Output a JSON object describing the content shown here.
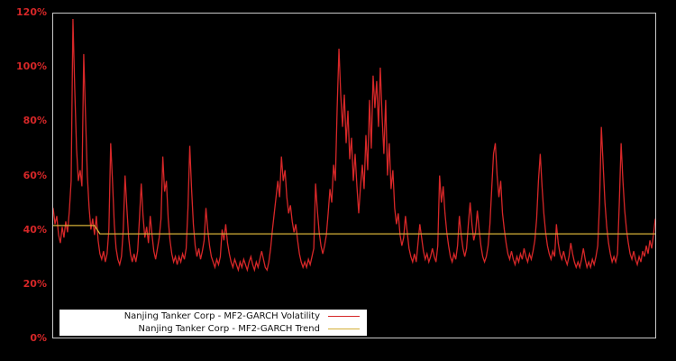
{
  "colors": {
    "background": "#000000",
    "volatility": "#d62728",
    "trend": "#d4af37",
    "axis_label": "#d62728",
    "plot_border": "#c8c8c8",
    "legend_bg": "#ffffff",
    "legend_text": "#111111"
  },
  "chart_data": {
    "type": "line",
    "title": "",
    "xlabel": "",
    "ylabel": "",
    "ylim": [
      0,
      120
    ],
    "x_axis_labels_visible": false,
    "grid": false,
    "legend_position": "lower-left",
    "y_ticks": [
      {
        "label": "0%",
        "value": 0
      },
      {
        "label": "20%",
        "value": 20
      },
      {
        "label": "40%",
        "value": 40
      },
      {
        "label": "60%",
        "value": 60
      },
      {
        "label": "80%",
        "value": 80
      },
      {
        "label": "100%",
        "value": 100
      },
      {
        "label": "120%",
        "value": 120
      }
    ],
    "series": [
      {
        "name": "Nanjing Tanker Corp - MF2-GARCH Volatility",
        "color_key": "volatility",
        "unit": "%",
        "values": [
          48,
          42,
          45,
          38,
          35,
          41,
          37,
          43,
          39,
          47,
          58,
          118,
          92,
          70,
          58,
          62,
          56,
          105,
          82,
          60,
          48,
          40,
          44,
          38,
          45,
          36,
          31,
          29,
          32,
          28,
          31,
          40,
          72,
          58,
          42,
          33,
          29,
          27,
          30,
          40,
          60,
          48,
          37,
          31,
          28,
          31,
          28,
          32,
          44,
          57,
          45,
          37,
          41,
          35,
          45,
          38,
          32,
          29,
          33,
          37,
          44,
          67,
          54,
          58,
          44,
          36,
          31,
          28,
          30,
          27,
          30,
          28,
          31,
          29,
          33,
          48,
          71,
          55,
          42,
          34,
          30,
          33,
          29,
          32,
          36,
          48,
          40,
          34,
          30,
          28,
          26,
          29,
          27,
          30,
          40,
          36,
          42,
          35,
          31,
          28,
          26,
          29,
          27,
          25,
          28,
          26,
          29,
          27,
          25,
          28,
          30,
          27,
          25,
          28,
          26,
          29,
          32,
          29,
          26,
          25,
          28,
          33,
          40,
          46,
          52,
          58,
          52,
          67,
          58,
          62,
          52,
          46,
          49,
          43,
          39,
          42,
          36,
          31,
          28,
          26,
          28,
          26,
          29,
          27,
          30,
          33,
          57,
          47,
          39,
          34,
          31,
          34,
          38,
          46,
          55,
          50,
          64,
          58,
          85,
          107,
          90,
          78,
          90,
          72,
          84,
          66,
          74,
          58,
          68,
          56,
          46,
          56,
          64,
          55,
          75,
          62,
          88,
          70,
          97,
          85,
          95,
          78,
          100,
          82,
          68,
          88,
          60,
          72,
          55,
          62,
          48,
          42,
          46,
          38,
          34,
          37,
          45,
          39,
          33,
          30,
          28,
          31,
          28,
          35,
          42,
          37,
          32,
          29,
          31,
          28,
          30,
          33,
          30,
          28,
          34,
          60,
          50,
          56,
          46,
          39,
          34,
          30,
          28,
          31,
          29,
          34,
          45,
          38,
          33,
          30,
          33,
          42,
          50,
          42,
          36,
          39,
          47,
          40,
          34,
          30,
          28,
          30,
          34,
          42,
          55,
          68,
          72,
          60,
          52,
          58,
          46,
          40,
          35,
          31,
          29,
          32,
          29,
          27,
          30,
          28,
          31,
          29,
          33,
          30,
          28,
          31,
          29,
          32,
          36,
          44,
          58,
          68,
          56,
          46,
          39,
          34,
          31,
          29,
          32,
          30,
          42,
          35,
          31,
          29,
          32,
          29,
          27,
          30,
          35,
          31,
          28,
          26,
          28,
          26,
          29,
          33,
          29,
          26,
          28,
          26,
          29,
          27,
          30,
          34,
          50,
          78,
          64,
          50,
          41,
          35,
          31,
          28,
          30,
          28,
          31,
          50,
          72,
          58,
          47,
          40,
          35,
          31,
          29,
          32,
          29,
          27,
          30,
          28,
          32,
          30,
          34,
          31,
          36,
          33,
          38,
          44
        ]
      },
      {
        "name": "Nanjing Tanker Corp - MF2-GARCH Trend",
        "color_key": "trend",
        "unit": "%",
        "x_domain": "plot-px",
        "points": [
          [
            0,
            41.5
          ],
          [
            46,
            41.5
          ],
          [
            52,
            38.4
          ],
          [
            670,
            38.4
          ]
        ]
      }
    ]
  }
}
